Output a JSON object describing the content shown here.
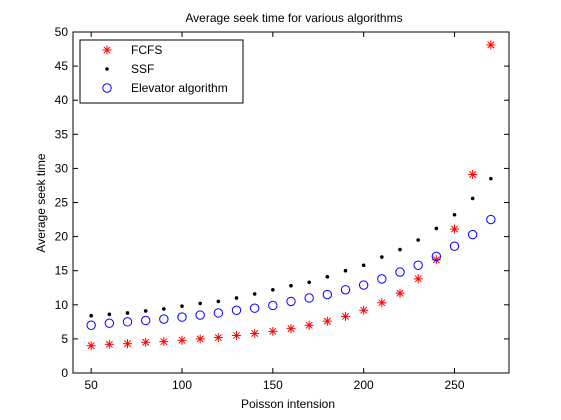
{
  "chart_data": {
    "type": "scatter",
    "title": "Average seek time for various algorithms",
    "xlabel": "Poisson intension",
    "ylabel": "Average seek time",
    "xlim": [
      40,
      280
    ],
    "ylim": [
      0,
      50
    ],
    "xticks": [
      50,
      100,
      150,
      200,
      250
    ],
    "yticks": [
      0,
      5,
      10,
      15,
      20,
      25,
      30,
      35,
      40,
      45,
      50
    ],
    "grid": false,
    "legend_position": "top-left",
    "x": [
      50,
      60,
      70,
      80,
      90,
      100,
      110,
      120,
      130,
      140,
      150,
      160,
      170,
      180,
      190,
      200,
      210,
      220,
      230,
      240,
      250,
      260,
      270
    ],
    "series": [
      {
        "name": "FCFS",
        "marker": "asterisk",
        "color": "#ff0000",
        "values": [
          4.0,
          4.2,
          4.3,
          4.5,
          4.6,
          4.8,
          5.0,
          5.2,
          5.5,
          5.8,
          6.1,
          6.5,
          7.0,
          7.6,
          8.3,
          9.2,
          10.3,
          11.7,
          13.8,
          16.6,
          21.1,
          29.1,
          48.1
        ]
      },
      {
        "name": "SSF",
        "marker": "dot",
        "color": "#000000",
        "values": [
          8.4,
          8.6,
          8.8,
          9.1,
          9.4,
          9.8,
          10.2,
          10.5,
          11.0,
          11.6,
          12.2,
          12.8,
          13.3,
          14.1,
          15.0,
          15.8,
          17.0,
          18.1,
          19.5,
          21.2,
          23.2,
          25.6,
          28.5
        ]
      },
      {
        "name": "Elevator algorithm",
        "marker": "circle",
        "color": "#0000ff",
        "values": [
          7.0,
          7.3,
          7.5,
          7.7,
          7.9,
          8.2,
          8.5,
          8.8,
          9.2,
          9.5,
          9.9,
          10.5,
          11.0,
          11.5,
          12.2,
          12.9,
          13.8,
          14.8,
          15.8,
          17.1,
          18.6,
          20.3,
          22.5
        ]
      }
    ]
  }
}
